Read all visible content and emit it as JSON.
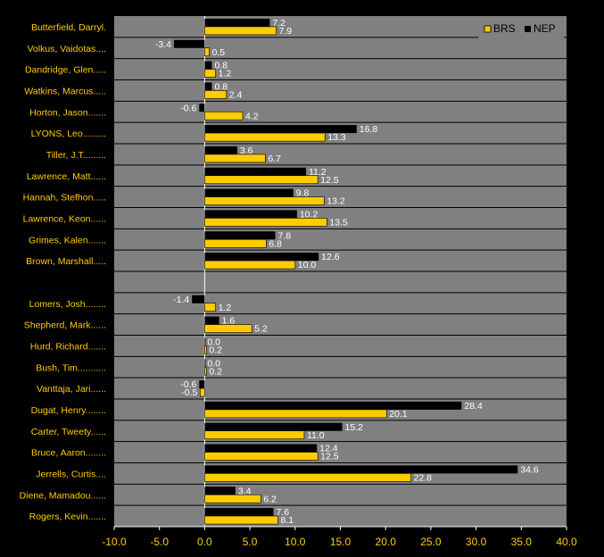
{
  "chart_data": {
    "type": "bar",
    "orientation": "horizontal",
    "categories": [
      "Butterfield, Darryl.",
      "Volkus, Vaidotas....",
      "Dandridge, Glen.....",
      "Watkins, Marcus.....",
      "Horton, Jason.......",
      "LYONS, Leo.........",
      "Tiller, J.T.........",
      "Lawrence, Matt......",
      "Hannah, Stefhon.....",
      "Lawrence, Keon......",
      "Grimes, Kalen.......",
      "Brown, Marshall.....",
      "",
      "Lomers, Josh........",
      "Shepherd, Mark......",
      "Hurd, Richard.......",
      "Bush, Tim...........",
      "Vanttaja, Jari......",
      "Dugat, Henry........",
      "Carter, Tweety......",
      "Bruce, Aaron........",
      "Jerrells, Curtis....",
      "Diene, Mamadou......",
      "Rogers, Kevin......."
    ],
    "series": [
      {
        "name": "NEP",
        "color": "#000000",
        "values": [
          7.2,
          -3.4,
          0.8,
          0.8,
          -0.6,
          16.8,
          3.6,
          11.2,
          9.8,
          10.2,
          7.8,
          12.6,
          null,
          -1.4,
          1.6,
          0.0,
          0.0,
          -0.6,
          28.4,
          15.2,
          12.4,
          34.6,
          3.4,
          7.6
        ]
      },
      {
        "name": "BRS",
        "color": "#FFCC00",
        "values": [
          7.9,
          0.5,
          1.2,
          2.4,
          4.2,
          13.3,
          6.7,
          12.5,
          13.2,
          13.5,
          6.8,
          10.0,
          null,
          1.2,
          5.2,
          0.2,
          0.2,
          -0.5,
          20.1,
          11.0,
          12.5,
          22.8,
          6.2,
          8.1
        ]
      }
    ],
    "xlim": [
      -10,
      40
    ],
    "xticks": [
      "-10.0",
      "-5.0",
      "0.0",
      "5.0",
      "10.0",
      "15.0",
      "20.0",
      "25.0",
      "30.0",
      "35.0",
      "40.0"
    ],
    "legend": {
      "position": "top-right",
      "order": [
        "BRS",
        "NEP"
      ]
    },
    "grid": true,
    "plot_background": "#808080",
    "page_background": "#000000",
    "label_color": "#FFCC00",
    "value_label_color": "#FFFFFF"
  }
}
